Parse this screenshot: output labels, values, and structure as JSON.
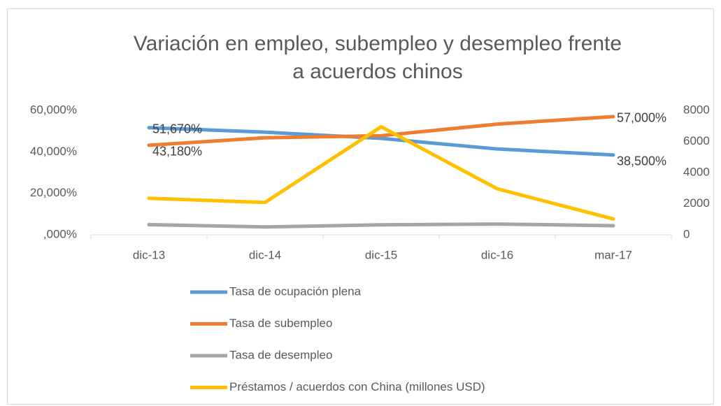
{
  "chart_data": {
    "type": "line",
    "title": [
      "Variación en empleo, subempleo y desempleo frente",
      "a acuerdos chinos"
    ],
    "categories": [
      "dic-13",
      "dic-14",
      "dic-15",
      "dic-16",
      "mar-17"
    ],
    "series": [
      {
        "name": "Tasa de ocupación plena",
        "color": "#5b9bd5",
        "values": [
          51.67,
          49.5,
          46.5,
          41.4,
          38.5
        ],
        "value_labels": [
          "51,670%",
          null,
          null,
          null,
          "38,500%"
        ]
      },
      {
        "name": "Tasa de subempleo",
        "color": "#ed7d31",
        "values": [
          43.18,
          46.8,
          47.8,
          53.4,
          57.0
        ],
        "value_labels": [
          "43,180%",
          null,
          null,
          null,
          "57,000%"
        ]
      },
      {
        "name": "Tasa de desempleo",
        "color": "#a5a5a5",
        "values": [
          4.9,
          3.8,
          4.8,
          5.2,
          4.4
        ]
      },
      {
        "name": "Préstamos / acuerdos con China (millones USD)",
        "color": "#ffc000",
        "axis": "y2",
        "values": [
          2350,
          2080,
          6950,
          2960,
          1020
        ]
      }
    ],
    "ylim": [
      0,
      60
    ],
    "yticks": [
      {
        "value": 0,
        "label": ",000%"
      },
      {
        "value": 20,
        "label": "20,000%"
      },
      {
        "value": 40,
        "label": "40,000%"
      },
      {
        "value": 60,
        "label": "60,000%"
      }
    ],
    "y2lim": [
      0,
      8000
    ],
    "y2ticks": [
      0,
      2000,
      4000,
      6000,
      8000
    ],
    "grid": false,
    "legend": "bottom"
  }
}
